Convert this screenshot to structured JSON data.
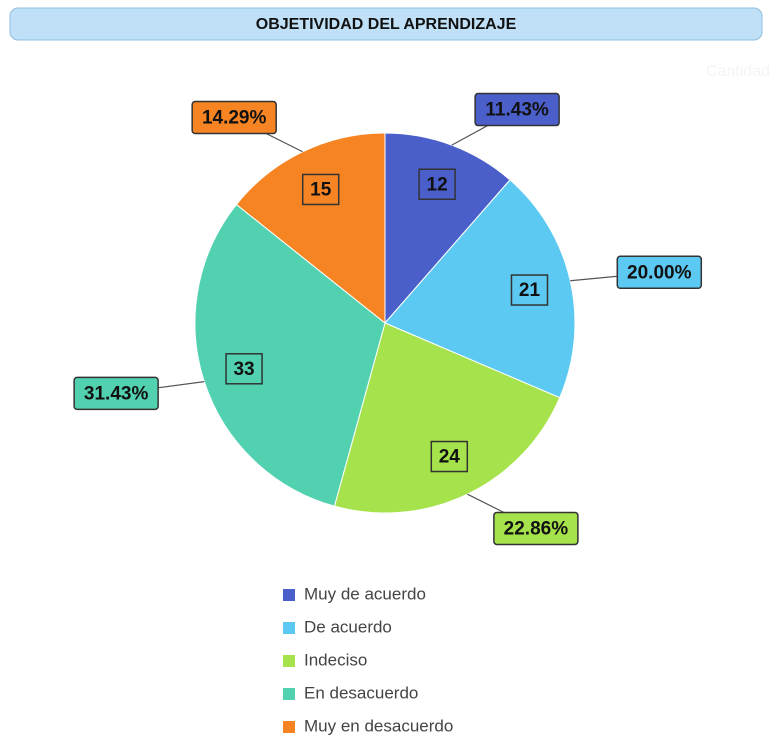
{
  "chart_data": {
    "type": "pie",
    "title": "OBJETIVIDAD DEL APRENDIZAJE",
    "series_name": "Cantidad",
    "categories": [
      "Muy de acuerdo",
      "De acuerdo",
      "Indeciso",
      "En desacuerdo",
      "Muy en desacuerdo"
    ],
    "values": [
      12,
      21,
      24,
      33,
      15
    ],
    "percentages": [
      11.43,
      20.0,
      22.86,
      31.43,
      14.29
    ],
    "percentage_labels": [
      "11.43%",
      "20.00%",
      "22.86%",
      "31.43%",
      "14.29%"
    ],
    "colors": [
      "#4a5fc9",
      "#5cc9f2",
      "#a6e24c",
      "#52d1b0",
      "#f68423"
    ],
    "legend": "bottom"
  }
}
